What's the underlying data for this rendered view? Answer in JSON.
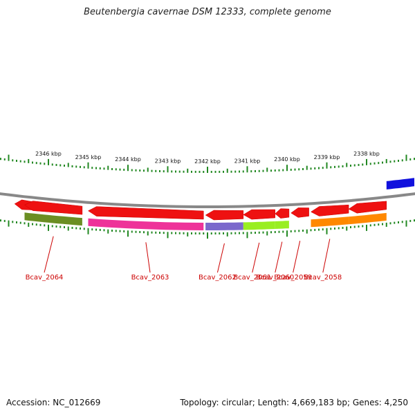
{
  "title": "Beutenbergia cavernae DSM 12333, complete genome",
  "footer": {
    "accession": "Accession: NC_012669",
    "topology": "Topology: circular; Length: 4,669,183 bp; Genes: 4,250"
  },
  "scale_labels": [
    {
      "label": "2346 kbp",
      "kbp": 2346
    },
    {
      "label": "2345 kbp",
      "kbp": 2345
    },
    {
      "label": "2344 kbp",
      "kbp": 2344
    },
    {
      "label": "2343 kbp",
      "kbp": 2343
    },
    {
      "label": "2342 kbp",
      "kbp": 2342
    },
    {
      "label": "2341 kbp",
      "kbp": 2341
    },
    {
      "label": "2340 kbp",
      "kbp": 2340
    },
    {
      "label": "2339 kbp",
      "kbp": 2339
    },
    {
      "label": "2338 kbp",
      "kbp": 2338
    }
  ],
  "colors": {
    "gene_red": "#ee1111",
    "backbone": "#888888",
    "tick_green": "#228822",
    "label_red": "#cc0000",
    "forward_blue": "#1111dd"
  },
  "genes": [
    {
      "start_kbp": 2346.4,
      "end_kbp": 2346.85,
      "strand": "-",
      "cog": null
    },
    {
      "start_kbp": 2345.15,
      "end_kbp": 2346.6,
      "strand": "-",
      "cog": "#6b8e23",
      "label": "Bcav_2064"
    },
    {
      "start_kbp": 2342.1,
      "end_kbp": 2345.0,
      "strand": "-",
      "cog": "#ee3399",
      "label": "Bcav_2063"
    },
    {
      "start_kbp": 2341.1,
      "end_kbp": 2342.05,
      "strand": "-",
      "cog": "#7b68cc",
      "label": "Bcav_2062"
    },
    {
      "start_kbp": 2340.3,
      "end_kbp": 2341.1,
      "strand": "-",
      "cog": "#99ee22",
      "label": "Bcav_2061"
    },
    {
      "start_kbp": 2339.95,
      "end_kbp": 2340.3,
      "strand": "-",
      "cog": "#99ee22",
      "label": "Bcav_2060"
    },
    {
      "start_kbp": 2339.45,
      "end_kbp": 2339.9,
      "strand": "-",
      "cog": null,
      "label": "Bcav_2059"
    },
    {
      "start_kbp": 2338.45,
      "end_kbp": 2339.4,
      "strand": "-",
      "cog": "#ff8800",
      "label": "Bcav_2058"
    },
    {
      "start_kbp": 2337.5,
      "end_kbp": 2338.45,
      "strand": "-",
      "cog": "#ff8800"
    },
    {
      "start_kbp": 2336.8,
      "end_kbp": 2337.5,
      "strand": "+",
      "cog": null
    }
  ]
}
